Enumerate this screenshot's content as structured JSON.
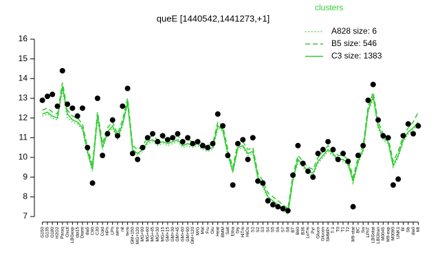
{
  "chart_data": {
    "type": "line",
    "title": "queE [1440542,1441273,+1]",
    "legend_title": "clusters",
    "legend_position": "top-right",
    "categories": [
      "G150",
      "G135",
      "G180",
      "H2O2",
      "Paraq",
      "Oxctl",
      "LBGexp",
      "dia15",
      "Diami",
      "dia5",
      "C90",
      "C30",
      "Cold",
      "HPh",
      "LPh",
      "aero",
      "nit",
      "ferm",
      "GM+150",
      "MG+120",
      "MG+90",
      "MG+60",
      "MG+45",
      "MG+30",
      "MG+15",
      "GM+15",
      "GM+30",
      "GM+45",
      "GM+60",
      "GM+90",
      "GM+120",
      "M/G",
      "Mal",
      "Fru",
      "Glu",
      "Heat",
      "BMM",
      "Salt",
      "Etha",
      "Gly",
      "HiTm",
      "HiOs",
      "S1",
      "S2",
      "S3",
      "S4",
      "S5",
      "S6",
      "S7",
      "S8",
      "BT",
      "B60",
      "B36",
      "LoTm",
      "Pyr",
      "Gluco",
      "Glucon",
      "SMMPr",
      "T-1",
      "T0",
      "T1",
      "T2",
      "M9-stat",
      "BC",
      "Sw",
      "LPhT",
      "LBGstat",
      "LBGtran",
      "M0045",
      "M9-exp",
      "M0090",
      "UNK1",
      "BI",
      "Sb",
      "dia0",
      "Mt"
    ],
    "points": {
      "color": "#000000",
      "values": [
        12.9,
        13.1,
        13.2,
        12.6,
        14.4,
        12.7,
        12.5,
        12.1,
        12.5,
        10.5,
        8.7,
        13.0,
        10.1,
        11.2,
        11.9,
        11.1,
        12.6,
        13.5,
        10.2,
        9.9,
        10.5,
        11.0,
        11.2,
        10.8,
        11.1,
        10.9,
        11.0,
        11.2,
        10.8,
        11.0,
        10.7,
        10.8,
        10.6,
        10.5,
        10.7,
        12.2,
        11.6,
        10.1,
        8.6,
        10.7,
        10.9,
        9.9,
        11.0,
        8.8,
        8.7,
        7.8,
        7.6,
        7.5,
        7.4,
        7.3,
        9.1,
        10.6,
        9.7,
        9.3,
        9.0,
        10.2,
        10.4,
        10.8,
        10.4,
        9.9,
        10.2,
        9.8,
        7.5,
        10.1,
        10.6,
        12.9,
        13.7,
        11.9,
        11.1,
        11.0,
        8.6,
        8.9,
        11.1,
        11.7,
        11.2,
        11.6
      ]
    },
    "series": [
      {
        "name": "A828 size: 6",
        "color": "#33cc33",
        "dash": "dotted",
        "values": [
          12.1,
          12.2,
          12.0,
          11.9,
          13.4,
          12.0,
          11.8,
          11.7,
          11.4,
          10.2,
          9.3,
          12.0,
          10.4,
          11.2,
          11.5,
          10.9,
          11.6,
          12.7,
          10.3,
          10.1,
          10.3,
          10.7,
          10.8,
          10.6,
          10.7,
          10.6,
          10.7,
          10.8,
          10.5,
          10.6,
          10.5,
          10.6,
          10.4,
          10.3,
          10.4,
          11.5,
          11.3,
          10.1,
          9.2,
          10.4,
          10.5,
          10.1,
          10.2,
          8.9,
          8.5,
          7.9,
          7.7,
          7.5,
          7.3,
          7.1,
          8.8,
          9.8,
          9.5,
          9.2,
          9.1,
          9.7,
          10.0,
          10.3,
          10.1,
          9.8,
          9.8,
          9.6,
          8.7,
          9.7,
          10.3,
          12.3,
          13.0,
          11.5,
          10.9,
          10.7,
          9.5,
          10.0,
          10.8,
          11.2,
          11.4,
          11.7
        ]
      },
      {
        "name": "B5 size: 546",
        "color": "#33cc33",
        "dash": "dashed",
        "values": [
          12.4,
          12.5,
          12.3,
          12.2,
          13.8,
          12.4,
          12.1,
          12.0,
          11.7,
          10.5,
          9.6,
          12.3,
          10.7,
          11.5,
          11.8,
          11.2,
          11.9,
          13.0,
          10.6,
          10.4,
          10.6,
          11.0,
          11.1,
          10.9,
          11.0,
          10.9,
          11.0,
          11.1,
          10.8,
          10.9,
          10.8,
          10.9,
          10.7,
          10.6,
          10.7,
          11.8,
          11.6,
          10.4,
          9.5,
          10.7,
          10.8,
          10.4,
          10.5,
          9.2,
          8.8,
          8.2,
          8.0,
          7.8,
          7.6,
          7.4,
          9.1,
          10.1,
          9.8,
          9.5,
          9.4,
          10.0,
          10.3,
          10.6,
          10.4,
          10.1,
          10.1,
          9.9,
          9.0,
          10.0,
          10.6,
          12.6,
          13.3,
          11.8,
          11.2,
          11.0,
          9.8,
          10.3,
          11.1,
          11.5,
          11.8,
          12.3
        ]
      },
      {
        "name": "C3 size: 1383",
        "color": "#33cc33",
        "dash": "solid",
        "values": [
          12.2,
          12.3,
          12.1,
          12.0,
          13.6,
          12.2,
          11.9,
          11.8,
          11.5,
          10.3,
          9.4,
          12.1,
          10.5,
          11.3,
          11.6,
          11.0,
          11.7,
          12.8,
          10.4,
          10.2,
          10.4,
          10.8,
          10.9,
          10.7,
          10.8,
          10.7,
          10.8,
          10.9,
          10.6,
          10.7,
          10.6,
          10.7,
          10.5,
          10.4,
          10.5,
          11.6,
          11.4,
          10.2,
          9.3,
          10.5,
          10.6,
          10.2,
          10.3,
          9.0,
          8.6,
          8.0,
          7.8,
          7.6,
          7.4,
          7.2,
          8.9,
          9.9,
          9.6,
          9.3,
          9.2,
          9.8,
          10.1,
          10.4,
          10.2,
          9.9,
          9.9,
          9.7,
          8.8,
          9.8,
          10.4,
          12.4,
          13.1,
          11.6,
          11.0,
          10.8,
          9.6,
          10.1,
          10.9,
          11.3,
          11.5,
          11.8
        ]
      }
    ],
    "ylim": [
      7,
      16
    ],
    "yticks": [
      7,
      8,
      9,
      10,
      11,
      12,
      13,
      14,
      15,
      16
    ]
  }
}
